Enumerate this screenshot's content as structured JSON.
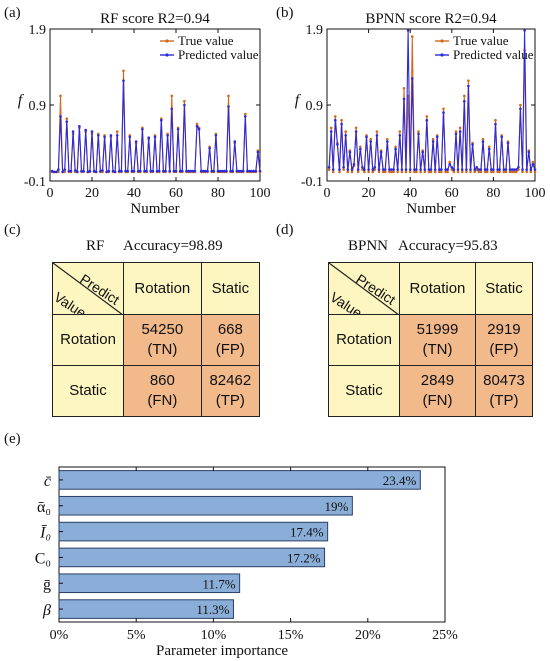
{
  "panels": {
    "a": {
      "label": "(a)",
      "title": "RF score   R2=0.94"
    },
    "b": {
      "label": "(b)",
      "title": "BPNN score   R2=0.94"
    },
    "c": {
      "label": "(c)",
      "title_model": "RF",
      "title_acc": "Accuracy=98.89"
    },
    "d": {
      "label": "(d)",
      "title_model": "BPNN",
      "title_acc": "Accuracy=95.83"
    },
    "e": {
      "label": "(e)"
    }
  },
  "colors": {
    "true": "#d2691e",
    "pred": "#2b2bdc",
    "bar": "#8aaed8",
    "bar_edge": "#2a3f66",
    "hdr": "#fdf6c0",
    "val": "#f2b98a"
  },
  "chart_data": [
    {
      "type": "line",
      "title": "RF score   R2=0.94",
      "xlabel": "Number",
      "ylabel": "f",
      "xlim": [
        0,
        100
      ],
      "ylim": [
        -0.1,
        1.9
      ],
      "xticks": [
        0,
        20,
        40,
        60,
        80,
        100
      ],
      "yticks": [
        "-0.1",
        "0.9",
        "1.9"
      ],
      "legend": "top-right",
      "x": [
        1,
        2,
        3,
        4,
        5,
        6,
        7,
        8,
        9,
        10,
        11,
        12,
        13,
        14,
        15,
        16,
        17,
        18,
        19,
        20,
        21,
        22,
        23,
        24,
        25,
        26,
        27,
        28,
        29,
        30,
        31,
        32,
        33,
        34,
        35,
        36,
        37,
        38,
        39,
        40,
        41,
        42,
        43,
        44,
        45,
        46,
        47,
        48,
        49,
        50,
        51,
        52,
        53,
        54,
        55,
        56,
        57,
        58,
        59,
        60,
        61,
        62,
        63,
        64,
        65,
        66,
        67,
        68,
        69,
        70,
        71,
        72,
        73,
        74,
        75,
        76,
        77,
        78,
        79,
        80,
        81,
        82,
        83,
        84,
        85,
        86,
        87,
        88,
        89,
        90,
        91,
        92,
        93,
        94,
        95,
        96,
        97,
        98,
        99,
        100
      ],
      "series": [
        {
          "name": "True value",
          "values": [
            0.02,
            0.02,
            0.02,
            0.02,
            1.02,
            0.02,
            0.02,
            0.72,
            0.02,
            0.02,
            0.52,
            0.02,
            0.02,
            0.6,
            0.02,
            0.02,
            0.55,
            0.02,
            0.02,
            0.52,
            0.02,
            0.02,
            0.52,
            0.02,
            0.02,
            0.5,
            0.02,
            0.02,
            0.48,
            0.02,
            0.02,
            0.55,
            0.02,
            0.02,
            1.35,
            0.02,
            0.02,
            0.5,
            0.02,
            0.02,
            0.4,
            0.02,
            0.02,
            0.6,
            0.02,
            0.02,
            0.45,
            0.02,
            0.02,
            0.5,
            0.02,
            0.02,
            0.72,
            0.02,
            0.02,
            0.52,
            0.02,
            1.02,
            0.02,
            0.02,
            0.6,
            0.02,
            0.02,
            0.95,
            0.02,
            0.02,
            0.02,
            0.02,
            0.02,
            0.65,
            0.6,
            0.02,
            0.02,
            0.02,
            0.02,
            0.35,
            0.02,
            0.02,
            0.52,
            0.02,
            0.02,
            0.02,
            0.02,
            0.02,
            1.02,
            0.02,
            0.02,
            0.4,
            0.02,
            0.02,
            0.02,
            0.02,
            0.78,
            0.02,
            0.02,
            0.02,
            0.02,
            0.02,
            0.3,
            0.02
          ]
        },
        {
          "name": "Predicted value",
          "values": [
            0.03,
            0.02,
            0.02,
            0.05,
            0.75,
            0.02,
            0.05,
            0.68,
            0.03,
            0.03,
            0.55,
            0.04,
            0.02,
            0.62,
            0.03,
            0.03,
            0.57,
            0.02,
            0.03,
            0.55,
            0.03,
            0.02,
            0.5,
            0.03,
            0.04,
            0.48,
            0.02,
            0.03,
            0.5,
            0.03,
            0.02,
            0.5,
            0.03,
            0.03,
            1.22,
            0.03,
            0.03,
            0.48,
            0.03,
            0.03,
            0.42,
            0.03,
            0.03,
            0.58,
            0.03,
            0.03,
            0.47,
            0.03,
            0.03,
            0.48,
            0.03,
            0.03,
            0.7,
            0.03,
            0.03,
            0.5,
            0.03,
            0.85,
            0.03,
            0.03,
            0.58,
            0.03,
            0.03,
            0.9,
            0.03,
            0.03,
            0.03,
            0.03,
            0.03,
            0.62,
            0.58,
            0.03,
            0.03,
            0.03,
            0.03,
            0.33,
            0.03,
            0.03,
            0.5,
            0.03,
            0.03,
            0.03,
            0.03,
            0.03,
            0.88,
            0.03,
            0.03,
            0.42,
            0.03,
            0.03,
            0.03,
            0.03,
            0.75,
            0.03,
            0.03,
            0.03,
            0.03,
            0.03,
            0.28,
            0.03
          ]
        }
      ]
    },
    {
      "type": "line",
      "title": "BPNN score   R2=0.94",
      "xlabel": "Number",
      "ylabel": "f",
      "xlim": [
        0,
        100
      ],
      "ylim": [
        -0.1,
        1.9
      ],
      "xticks": [
        0,
        20,
        40,
        60,
        80,
        100
      ],
      "yticks": [
        "-0.1",
        "0.9",
        "1.9"
      ],
      "legend": "top-right",
      "x": [
        1,
        2,
        3,
        4,
        5,
        6,
        7,
        8,
        9,
        10,
        11,
        12,
        13,
        14,
        15,
        16,
        17,
        18,
        19,
        20,
        21,
        22,
        23,
        24,
        25,
        26,
        27,
        28,
        29,
        30,
        31,
        32,
        33,
        34,
        35,
        36,
        37,
        38,
        39,
        40,
        41,
        42,
        43,
        44,
        45,
        46,
        47,
        48,
        49,
        50,
        51,
        52,
        53,
        54,
        55,
        56,
        57,
        58,
        59,
        60,
        61,
        62,
        63,
        64,
        65,
        66,
        67,
        68,
        69,
        70,
        71,
        72,
        73,
        74,
        75,
        76,
        77,
        78,
        79,
        80,
        81,
        82,
        83,
        84,
        85,
        86,
        87,
        88,
        89,
        90,
        91,
        92,
        93,
        94,
        95,
        96,
        97,
        98,
        99,
        100
      ],
      "series": [
        {
          "name": "True value",
          "values": [
            0.05,
            0.6,
            0.02,
            0.75,
            0.4,
            0.02,
            0.7,
            0.05,
            0.55,
            0.02,
            0.3,
            0.02,
            0.1,
            0.6,
            0.02,
            0.35,
            0.05,
            0.02,
            0.5,
            0.02,
            0.45,
            0.02,
            0.05,
            0.55,
            0.02,
            0.3,
            0.02,
            0.02,
            0.45,
            0.02,
            0.02,
            0.02,
            0.35,
            0.02,
            0.55,
            0.02,
            1.12,
            0.02,
            1.02,
            0.02,
            1.8,
            0.02,
            0.02,
            0.55,
            0.02,
            0.3,
            0.02,
            0.75,
            0.02,
            0.02,
            0.45,
            0.02,
            0.5,
            0.02,
            0.02,
            0.85,
            0.02,
            0.02,
            0.15,
            0.05,
            0.02,
            0.55,
            0.02,
            0.6,
            0.02,
            1.02,
            0.02,
            1.22,
            0.02,
            0.4,
            0.02,
            0.05,
            0.02,
            0.02,
            0.45,
            0.02,
            0.02,
            0.35,
            0.02,
            0.02,
            0.7,
            0.02,
            0.02,
            0.5,
            0.02,
            0.02,
            0.42,
            0.02,
            0.02,
            0.02,
            0.02,
            0.05,
            0.9,
            0.02,
            1.62,
            0.02,
            0.3,
            0.02,
            0.15,
            0.02
          ]
        },
        {
          "name": "Predicted value",
          "values": [
            0.08,
            0.55,
            0.05,
            0.7,
            0.38,
            0.05,
            0.65,
            0.08,
            0.5,
            0.05,
            0.28,
            0.05,
            0.12,
            0.55,
            0.05,
            0.32,
            0.08,
            0.05,
            0.48,
            0.05,
            0.42,
            0.05,
            0.08,
            0.5,
            0.05,
            0.28,
            0.05,
            0.05,
            0.42,
            0.05,
            0.05,
            0.05,
            0.32,
            0.05,
            0.5,
            0.05,
            0.98,
            0.05,
            1.88,
            0.05,
            1.25,
            0.05,
            0.05,
            0.52,
            0.05,
            0.28,
            0.05,
            0.7,
            0.05,
            0.05,
            0.42,
            0.05,
            0.48,
            0.05,
            0.05,
            0.8,
            0.05,
            0.05,
            0.12,
            0.08,
            0.05,
            0.52,
            0.05,
            0.55,
            0.05,
            0.95,
            0.05,
            1.15,
            0.05,
            0.38,
            0.05,
            0.08,
            0.05,
            0.05,
            0.42,
            0.05,
            0.05,
            0.32,
            0.05,
            0.05,
            0.65,
            0.05,
            0.05,
            0.48,
            0.05,
            0.05,
            0.4,
            0.05,
            0.05,
            0.05,
            0.05,
            0.08,
            0.85,
            0.05,
            1.88,
            0.05,
            0.28,
            0.05,
            0.12,
            0.05
          ]
        }
      ]
    },
    {
      "type": "table",
      "title": "RF   Accuracy=98.89",
      "corner_top": "Predict",
      "corner_bottom": "Value",
      "col_headers": [
        "Rotation",
        "Static"
      ],
      "row_headers": [
        "Rotation",
        "Static"
      ],
      "cells": [
        [
          "54250",
          "(TN)",
          "668",
          "(FP)"
        ],
        [
          "860",
          "(FN)",
          "82462",
          "(TP)"
        ]
      ]
    },
    {
      "type": "table",
      "title": "BPNN   Accuracy=95.83",
      "corner_top": "Predict",
      "corner_bottom": "Value",
      "col_headers": [
        "Rotation",
        "Static"
      ],
      "row_headers": [
        "Rotation",
        "Static"
      ],
      "cells": [
        [
          "51999",
          "(TN)",
          "2919",
          "(FP)"
        ],
        [
          "2849",
          "(FN)",
          "80473",
          "(TP)"
        ]
      ]
    },
    {
      "type": "bar",
      "orientation": "horizontal",
      "categories": [
        "c̄",
        "ᾱ₀",
        "Ī₀",
        "C₀",
        "ḡ",
        "β"
      ],
      "values": [
        23.4,
        19,
        17.4,
        17.2,
        11.7,
        11.3
      ],
      "value_labels": [
        "23.4%",
        "19%",
        "17.4%",
        "17.2%",
        "11.7%",
        "11.3%"
      ],
      "xlabel": "Parameter importance",
      "xlim": [
        0,
        25
      ],
      "xticks": [
        "0%",
        "5%",
        "10%",
        "15%",
        "20%",
        "25%"
      ]
    }
  ]
}
